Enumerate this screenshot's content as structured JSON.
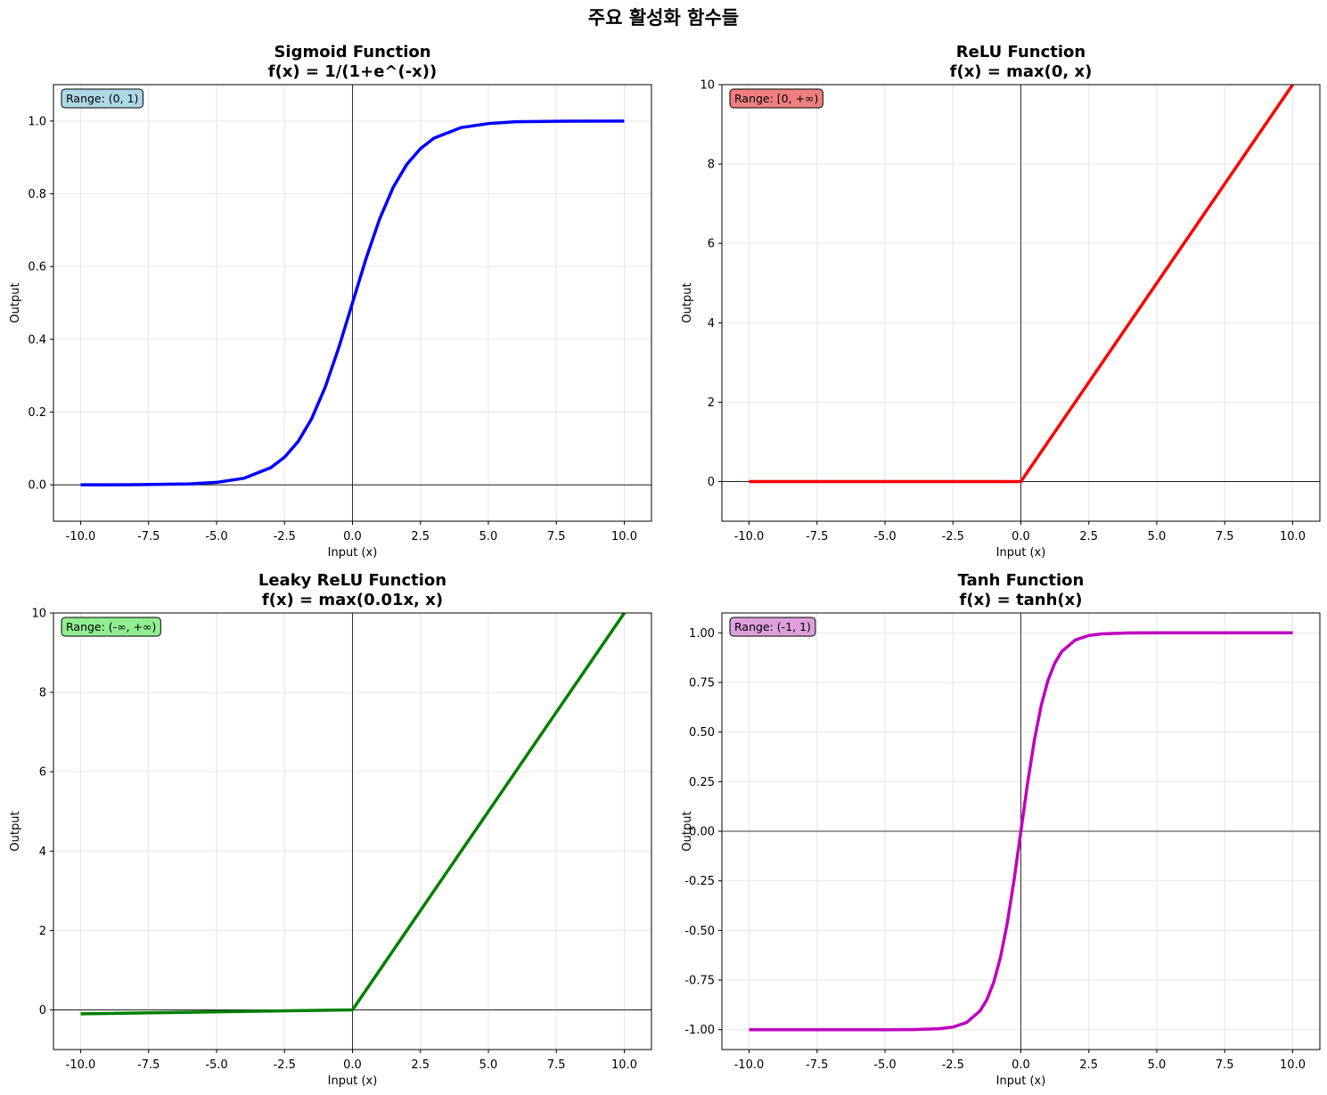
{
  "figure": {
    "suptitle": "주요 활성화 함수들"
  },
  "chart_data": [
    {
      "type": "line",
      "title": "Sigmoid Function\nf(x) = 1/(1+e^(-x))",
      "xlabel": "Input (x)",
      "ylabel": "Output",
      "xlim": [
        -11,
        11
      ],
      "ylim": [
        -0.1,
        1.1
      ],
      "xticks": [
        -10,
        -7.5,
        -5,
        -2.5,
        0,
        2.5,
        5,
        7.5,
        10
      ],
      "xtick_labels": [
        "-10.0",
        "-7.5",
        "-5.0",
        "-2.5",
        "0.0",
        "2.5",
        "5.0",
        "7.5",
        "10.0"
      ],
      "yticks": [
        0,
        0.2,
        0.4,
        0.6,
        0.8,
        1.0
      ],
      "ytick_labels": [
        "0.0",
        "0.2",
        "0.4",
        "0.6",
        "0.8",
        "1.0"
      ],
      "grid": true,
      "series": [
        {
          "color": "#0000ff",
          "x": [
            -10,
            -8,
            -6,
            -5,
            -4,
            -3,
            -2.5,
            -2,
            -1.5,
            -1,
            -0.5,
            0,
            0.5,
            1,
            1.5,
            2,
            2.5,
            3,
            4,
            5,
            6,
            8,
            10
          ],
          "y": [
            4.54e-05,
            0.000335,
            0.00247,
            0.00669,
            0.018,
            0.0474,
            0.0759,
            0.119,
            0.182,
            0.269,
            0.378,
            0.5,
            0.622,
            0.731,
            0.818,
            0.881,
            0.924,
            0.953,
            0.982,
            0.993,
            0.998,
            0.99966,
            0.99995
          ]
        }
      ],
      "annotation": {
        "text": "Range: (0, 1)",
        "facecolor": "#add8e6"
      }
    },
    {
      "type": "line",
      "title": "ReLU Function\nf(x) = max(0, x)",
      "xlabel": "Input (x)",
      "ylabel": "Output",
      "xlim": [
        -11,
        11
      ],
      "ylim": [
        -1,
        10
      ],
      "xticks": [
        -10,
        -7.5,
        -5,
        -2.5,
        0,
        2.5,
        5,
        7.5,
        10
      ],
      "xtick_labels": [
        "-10.0",
        "-7.5",
        "-5.0",
        "-2.5",
        "0.0",
        "2.5",
        "5.0",
        "7.5",
        "10.0"
      ],
      "yticks": [
        0,
        2,
        4,
        6,
        8,
        10
      ],
      "ytick_labels": [
        "0",
        "2",
        "4",
        "6",
        "8",
        "10"
      ],
      "grid": true,
      "series": [
        {
          "color": "#ff0000",
          "x": [
            -10,
            0,
            10
          ],
          "y": [
            0,
            0,
            10
          ]
        }
      ],
      "annotation": {
        "text": "Range: [0, +∞)",
        "facecolor": "#f08080"
      }
    },
    {
      "type": "line",
      "title": "Leaky ReLU Function\nf(x) = max(0.01x, x)",
      "xlabel": "Input (x)",
      "ylabel": "Output",
      "xlim": [
        -11,
        11
      ],
      "ylim": [
        -1,
        10
      ],
      "xticks": [
        -10,
        -7.5,
        -5,
        -2.5,
        0,
        2.5,
        5,
        7.5,
        10
      ],
      "xtick_labels": [
        "-10.0",
        "-7.5",
        "-5.0",
        "-2.5",
        "0.0",
        "2.5",
        "5.0",
        "7.5",
        "10.0"
      ],
      "yticks": [
        0,
        2,
        4,
        6,
        8,
        10
      ],
      "ytick_labels": [
        "0",
        "2",
        "4",
        "6",
        "8",
        "10"
      ],
      "grid": true,
      "series": [
        {
          "color": "#008000",
          "x": [
            -10,
            0,
            10
          ],
          "y": [
            -0.1,
            0,
            10
          ]
        }
      ],
      "annotation": {
        "text": "Range: (-∞, +∞)",
        "facecolor": "#90ee90"
      }
    },
    {
      "type": "line",
      "title": "Tanh Function\nf(x) = tanh(x)",
      "xlabel": "Input (x)",
      "ylabel": "Output",
      "xlim": [
        -11,
        11
      ],
      "ylim": [
        -1.1,
        1.1
      ],
      "xticks": [
        -10,
        -7.5,
        -5,
        -2.5,
        0,
        2.5,
        5,
        7.5,
        10
      ],
      "xtick_labels": [
        "-10.0",
        "-7.5",
        "-5.0",
        "-2.5",
        "0.0",
        "2.5",
        "5.0",
        "7.5",
        "10.0"
      ],
      "yticks": [
        -1,
        -0.75,
        -0.5,
        -0.25,
        0,
        0.25,
        0.5,
        0.75,
        1
      ],
      "ytick_labels": [
        "-1.00",
        "-0.75",
        "-0.50",
        "-0.25",
        "0.00",
        "0.25",
        "0.50",
        "0.75",
        "1.00"
      ],
      "grid": true,
      "series": [
        {
          "color": "#bf00bf",
          "x": [
            -10,
            -5,
            -4,
            -3,
            -2.5,
            -2,
            -1.5,
            -1.25,
            -1,
            -0.75,
            -0.5,
            -0.25,
            0,
            0.25,
            0.5,
            0.75,
            1,
            1.25,
            1.5,
            2,
            2.5,
            3,
            4,
            5,
            10
          ],
          "y": [
            -1,
            -0.9999,
            -0.9993,
            -0.9951,
            -0.9866,
            -0.964,
            -0.9051,
            -0.8483,
            -0.7616,
            -0.6351,
            -0.4621,
            -0.2449,
            0,
            0.2449,
            0.4621,
            0.6351,
            0.7616,
            0.8483,
            0.9051,
            0.964,
            0.9866,
            0.9951,
            0.9993,
            0.9999,
            1
          ]
        }
      ],
      "annotation": {
        "text": "Range: (-1, 1)",
        "facecolor": "#dda0dd"
      }
    }
  ]
}
